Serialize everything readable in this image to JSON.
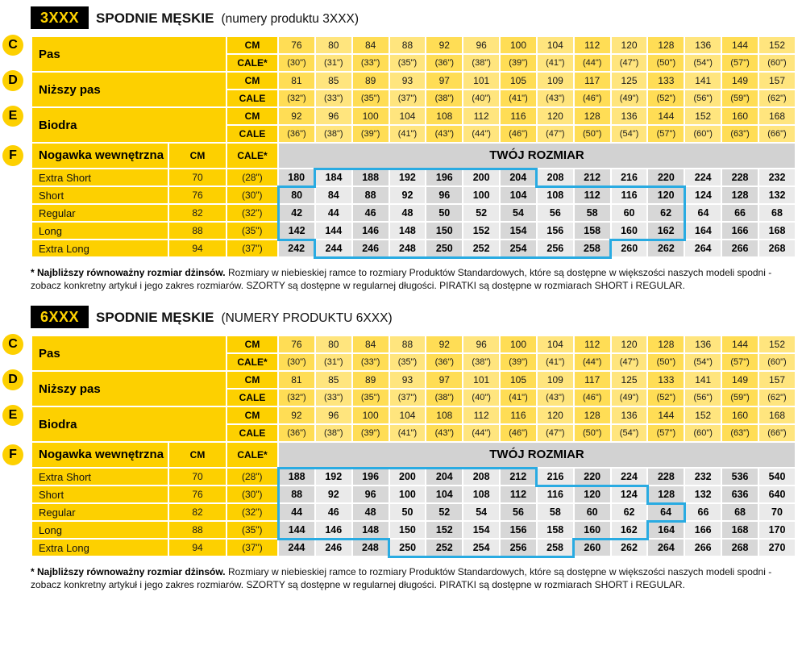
{
  "colors": {
    "yellow": "#fdd000",
    "yellow_cell_a": "#ffdd55",
    "yellow_cell_b": "#ffe57e",
    "gray_header": "#d2d2d2",
    "gray_cell_a": "#d7d7d7",
    "gray_cell_b": "#eaeaea",
    "blue_frame": "#29abe2",
    "badge_bg": "#000000",
    "badge_text": "#ffd400"
  },
  "sections": [
    {
      "badge": "3XXX",
      "title": "SPODNIE MĘSKIE",
      "subtitle": "(numery produktu 3XXX)",
      "measures": [
        {
          "letter": "C",
          "label": "Pas",
          "row1_unit": "CM",
          "row2_unit": "CALE*",
          "row1": [
            "76",
            "80",
            "84",
            "88",
            "92",
            "96",
            "100",
            "104",
            "112",
            "120",
            "128",
            "136",
            "144",
            "152"
          ],
          "row2": [
            "(30\")",
            "(31\")",
            "(33\")",
            "(35\")",
            "(36\")",
            "(38\")",
            "(39\")",
            "(41\")",
            "(44\")",
            "(47\")",
            "(50\")",
            "(54\")",
            "(57\")",
            "(60\")"
          ]
        },
        {
          "letter": "D",
          "label": "Niższy pas",
          "row1_unit": "CM",
          "row2_unit": "CALE",
          "row1": [
            "81",
            "85",
            "89",
            "93",
            "97",
            "101",
            "105",
            "109",
            "117",
            "125",
            "133",
            "141",
            "149",
            "157"
          ],
          "row2": [
            "(32\")",
            "(33\")",
            "(35\")",
            "(37\")",
            "(38\")",
            "(40\")",
            "(41\")",
            "(43\")",
            "(46\")",
            "(49\")",
            "(52\")",
            "(56\")",
            "(59\")",
            "(62\")"
          ]
        },
        {
          "letter": "E",
          "label": "Biodra",
          "row1_unit": "CM",
          "row2_unit": "CALE",
          "row1": [
            "92",
            "96",
            "100",
            "104",
            "108",
            "112",
            "116",
            "120",
            "128",
            "136",
            "144",
            "152",
            "160",
            "168"
          ],
          "row2": [
            "(36\")",
            "(38\")",
            "(39\")",
            "(41\")",
            "(43\")",
            "(44\")",
            "(46\")",
            "(47\")",
            "(50\")",
            "(54\")",
            "(57\")",
            "(60\")",
            "(63\")",
            "(66\")"
          ]
        }
      ],
      "leg": {
        "letter": "F",
        "label": "Nogawka wewnętrzna",
        "cm_header": "CM",
        "cale_header": "CALE*",
        "size_header": "TWÓJ ROZMIAR",
        "rows": [
          {
            "label": "Extra Short",
            "cm": "70",
            "cale": "(28\")",
            "values": [
              "180",
              "184",
              "188",
              "192",
              "196",
              "200",
              "204",
              "208",
              "212",
              "216",
              "220",
              "224",
              "228",
              "232"
            ],
            "frame": [
              2,
              7
            ]
          },
          {
            "label": "Short",
            "cm": "76",
            "cale": "(30\")",
            "values": [
              "80",
              "84",
              "88",
              "92",
              "96",
              "100",
              "104",
              "108",
              "112",
              "116",
              "120",
              "124",
              "128",
              "132"
            ],
            "frame": [
              1,
              11
            ]
          },
          {
            "label": "Regular",
            "cm": "82",
            "cale": "(32\")",
            "values": [
              "42",
              "44",
              "46",
              "48",
              "50",
              "52",
              "54",
              "56",
              "58",
              "60",
              "62",
              "64",
              "66",
              "68"
            ],
            "frame": [
              1,
              11
            ]
          },
          {
            "label": "Long",
            "cm": "88",
            "cale": "(35\")",
            "values": [
              "142",
              "144",
              "146",
              "148",
              "150",
              "152",
              "154",
              "156",
              "158",
              "160",
              "162",
              "164",
              "166",
              "168"
            ],
            "frame": [
              1,
              11
            ]
          },
          {
            "label": "Extra Long",
            "cm": "94",
            "cale": "(37\")",
            "values": [
              "242",
              "244",
              "246",
              "248",
              "250",
              "252",
              "254",
              "256",
              "258",
              "260",
              "262",
              "264",
              "266",
              "268"
            ],
            "frame": [
              2,
              9
            ]
          }
        ]
      },
      "footnote_bold": "* Najbliższy równoważny rozmiar dżinsów.",
      "footnote_rest": " Rozmiary w niebieskiej ramce to rozmiary Produktów Standardowych, które są dostępne w większości naszych modeli spodni - zobacz konkretny artykuł i jego zakres rozmiarów. SZORTY są dostępne w regularnej długości. PIRATKI są dostępne w rozmiarach SHORT i REGULAR."
    },
    {
      "badge": "6XXX",
      "title": "SPODNIE MĘSKIE",
      "subtitle": "(NUMERY PRODUKTU 6XXX)",
      "measures": [
        {
          "letter": "C",
          "label": "Pas",
          "row1_unit": "CM",
          "row2_unit": "CALE*",
          "row1": [
            "76",
            "80",
            "84",
            "88",
            "92",
            "96",
            "100",
            "104",
            "112",
            "120",
            "128",
            "136",
            "144",
            "152"
          ],
          "row2": [
            "(30\")",
            "(31\")",
            "(33\")",
            "(35\")",
            "(36\")",
            "(38\")",
            "(39\")",
            "(41\")",
            "(44\")",
            "(47\")",
            "(50\")",
            "(54\")",
            "(57\")",
            "(60\")"
          ]
        },
        {
          "letter": "D",
          "label": "Niższy pas",
          "row1_unit": "CM",
          "row2_unit": "CALE",
          "row1": [
            "81",
            "85",
            "89",
            "93",
            "97",
            "101",
            "105",
            "109",
            "117",
            "125",
            "133",
            "141",
            "149",
            "157"
          ],
          "row2": [
            "(32\")",
            "(33\")",
            "(35\")",
            "(37\")",
            "(38\")",
            "(40\")",
            "(41\")",
            "(43\")",
            "(46\")",
            "(49\")",
            "(52\")",
            "(56\")",
            "(59\")",
            "(62\")"
          ]
        },
        {
          "letter": "E",
          "label": "Biodra",
          "row1_unit": "CM",
          "row2_unit": "CALE",
          "row1": [
            "92",
            "96",
            "100",
            "104",
            "108",
            "112",
            "116",
            "120",
            "128",
            "136",
            "144",
            "152",
            "160",
            "168"
          ],
          "row2": [
            "(36\")",
            "(38\")",
            "(39\")",
            "(41\")",
            "(43\")",
            "(44\")",
            "(46\")",
            "(47\")",
            "(50\")",
            "(54\")",
            "(57\")",
            "(60\")",
            "(63\")",
            "(66\")"
          ]
        }
      ],
      "leg": {
        "letter": "F",
        "label": "Nogawka wewnętrzna",
        "cm_header": "CM",
        "cale_header": "CALE*",
        "size_header": "TWÓJ ROZMIAR",
        "rows": [
          {
            "label": "Extra Short",
            "cm": "70",
            "cale": "(28\")",
            "values": [
              "188",
              "192",
              "196",
              "200",
              "204",
              "208",
              "212",
              "216",
              "220",
              "224",
              "228",
              "232",
              "536",
              "540"
            ],
            "frame": [
              1,
              7
            ]
          },
          {
            "label": "Short",
            "cm": "76",
            "cale": "(30\")",
            "values": [
              "88",
              "92",
              "96",
              "100",
              "104",
              "108",
              "112",
              "116",
              "120",
              "124",
              "128",
              "132",
              "636",
              "640"
            ],
            "frame": [
              1,
              10
            ]
          },
          {
            "label": "Regular",
            "cm": "82",
            "cale": "(32\")",
            "values": [
              "44",
              "46",
              "48",
              "50",
              "52",
              "54",
              "56",
              "58",
              "60",
              "62",
              "64",
              "66",
              "68",
              "70"
            ],
            "frame": [
              1,
              11
            ]
          },
          {
            "label": "Long",
            "cm": "88",
            "cale": "(35\")",
            "values": [
              "144",
              "146",
              "148",
              "150",
              "152",
              "154",
              "156",
              "158",
              "160",
              "162",
              "164",
              "166",
              "168",
              "170"
            ],
            "frame": [
              1,
              10
            ]
          },
          {
            "label": "Extra Long",
            "cm": "94",
            "cale": "(37\")",
            "values": [
              "244",
              "246",
              "248",
              "250",
              "252",
              "254",
              "256",
              "258",
              "260",
              "262",
              "264",
              "266",
              "268",
              "270"
            ],
            "frame": [
              4,
              8
            ]
          }
        ]
      },
      "footnote_bold": "* Najbliższy równoważny rozmiar dżinsów.",
      "footnote_rest": " Rozmiary w niebieskiej ramce to rozmiary Produktów Standardowych, które są dostępne w większości naszych modeli spodni - zobacz konkretny artykuł i jego zakres rozmiarów. SZORTY są dostępne w regularnej długości. PIRATKI są dostępne w rozmiarach SHORT i REGULAR."
    }
  ]
}
